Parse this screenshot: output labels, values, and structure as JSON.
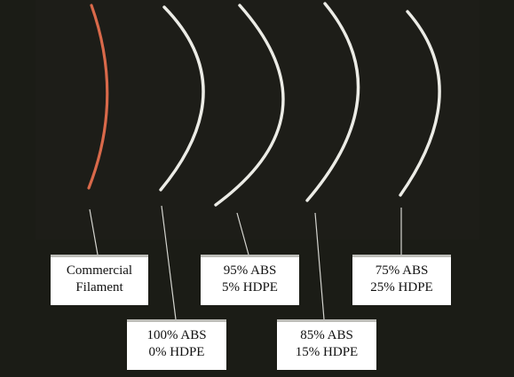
{
  "image": {
    "background_color": "#1b1c16",
    "filament_colors": {
      "commercial": "#d9694a",
      "blend": "#ecece6"
    },
    "leader_line_color": "#d4d4cf"
  },
  "labels": [
    {
      "key": "commercial",
      "line1": "Commercial",
      "line2": "Filament"
    },
    {
      "key": "abs100",
      "line1": "100% ABS",
      "line2": "0% HDPE"
    },
    {
      "key": "abs95",
      "line1": "95% ABS",
      "line2": "5% HDPE"
    },
    {
      "key": "abs85",
      "line1": "85% ABS",
      "line2": "15% HDPE"
    },
    {
      "key": "abs75",
      "line1": "75% ABS",
      "line2": "25% HDPE"
    }
  ]
}
